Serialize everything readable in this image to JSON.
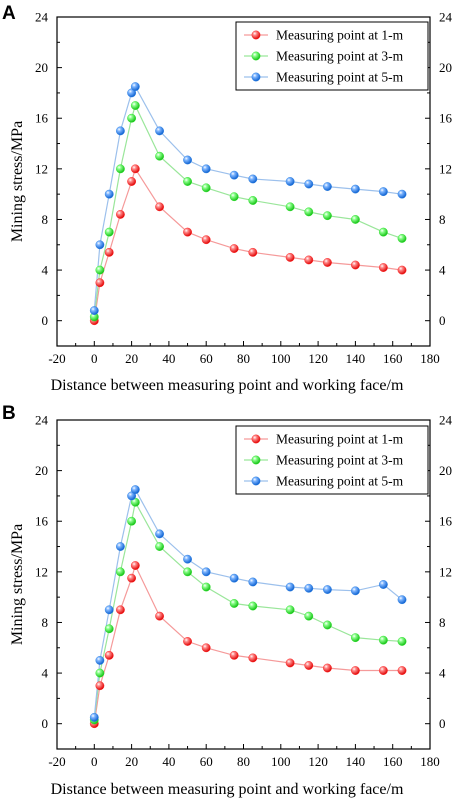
{
  "chart_data": [
    {
      "type": "scatter",
      "panel_label": "A",
      "title": "",
      "xlabel": "Distance between measuring point and working face/m",
      "ylabel": "Mining stress/MPa",
      "xlim": [
        -20,
        180
      ],
      "ylim": [
        -2,
        24
      ],
      "xticks": [
        -20,
        0,
        20,
        40,
        60,
        80,
        100,
        120,
        140,
        160,
        180
      ],
      "yticks": [
        0,
        4,
        8,
        12,
        16,
        20,
        24
      ],
      "right_axis": true,
      "grid": false,
      "legend_position": "top-right",
      "series": [
        {
          "name": "Measuring point at 1-m",
          "color": "#ff2020",
          "line_color": "#f59a9a",
          "x": [
            0,
            3,
            8,
            14,
            20,
            22,
            35,
            50,
            60,
            75,
            85,
            105,
            115,
            125,
            140,
            155,
            165
          ],
          "y": [
            0,
            3,
            5.4,
            8.4,
            11,
            12,
            9,
            7,
            6.4,
            5.7,
            5.4,
            5,
            4.8,
            4.6,
            4.4,
            4.2,
            4
          ]
        },
        {
          "name": "Measuring point at 3-m",
          "color": "#28e028",
          "line_color": "#9ae69a",
          "x": [
            0,
            3,
            8,
            14,
            20,
            22,
            35,
            50,
            60,
            75,
            85,
            105,
            115,
            125,
            140,
            155,
            165
          ],
          "y": [
            0.3,
            4,
            7,
            12,
            16,
            17,
            13,
            11,
            10.5,
            9.8,
            9.5,
            9,
            8.6,
            8.3,
            8,
            7,
            6.5
          ]
        },
        {
          "name": "Measuring point at 5-m",
          "color": "#2a7fe0",
          "line_color": "#9cc0ec",
          "x": [
            0,
            3,
            8,
            14,
            20,
            22,
            35,
            50,
            60,
            75,
            85,
            105,
            115,
            125,
            140,
            155,
            165
          ],
          "y": [
            0.8,
            6,
            10,
            15,
            18,
            18.5,
            15,
            12.7,
            12,
            11.5,
            11.2,
            11,
            10.8,
            10.6,
            10.4,
            10.2,
            10
          ]
        }
      ]
    },
    {
      "type": "scatter",
      "panel_label": "B",
      "title": "",
      "xlabel": "Distance between measuring point and working face/m",
      "ylabel": "Mining stress/MPa",
      "xlim": [
        -20,
        180
      ],
      "ylim": [
        -2,
        24
      ],
      "xticks": [
        -20,
        0,
        20,
        40,
        60,
        80,
        100,
        120,
        140,
        160,
        180
      ],
      "yticks": [
        0,
        4,
        8,
        12,
        16,
        20,
        24
      ],
      "right_axis": true,
      "grid": false,
      "legend_position": "top-right",
      "series": [
        {
          "name": "Measuring point at 1-m",
          "color": "#ff2020",
          "line_color": "#f59a9a",
          "x": [
            0,
            3,
            8,
            14,
            20,
            22,
            35,
            50,
            60,
            75,
            85,
            105,
            115,
            125,
            140,
            155,
            165
          ],
          "y": [
            0,
            3,
            5.4,
            9,
            11.5,
            12.5,
            8.5,
            6.5,
            6,
            5.4,
            5.2,
            4.8,
            4.6,
            4.4,
            4.2,
            4.2,
            4.2
          ]
        },
        {
          "name": "Measuring point at 3-m",
          "color": "#28e028",
          "line_color": "#9ae69a",
          "x": [
            0,
            3,
            8,
            14,
            20,
            22,
            35,
            50,
            60,
            75,
            85,
            105,
            115,
            125,
            140,
            155,
            165
          ],
          "y": [
            0.3,
            4,
            7.5,
            12,
            16,
            17.5,
            14,
            12,
            10.8,
            9.5,
            9.3,
            9,
            8.5,
            7.8,
            6.8,
            6.6,
            6.5
          ]
        },
        {
          "name": "Measuring point at 5-m",
          "color": "#2a7fe0",
          "line_color": "#9cc0ec",
          "x": [
            0,
            3,
            8,
            14,
            20,
            22,
            35,
            50,
            60,
            75,
            85,
            105,
            115,
            125,
            140,
            155,
            165
          ],
          "y": [
            0.5,
            5,
            9,
            14,
            18,
            18.5,
            15,
            13,
            12,
            11.5,
            11.2,
            10.8,
            10.7,
            10.6,
            10.5,
            11,
            9.8
          ]
        }
      ]
    }
  ]
}
